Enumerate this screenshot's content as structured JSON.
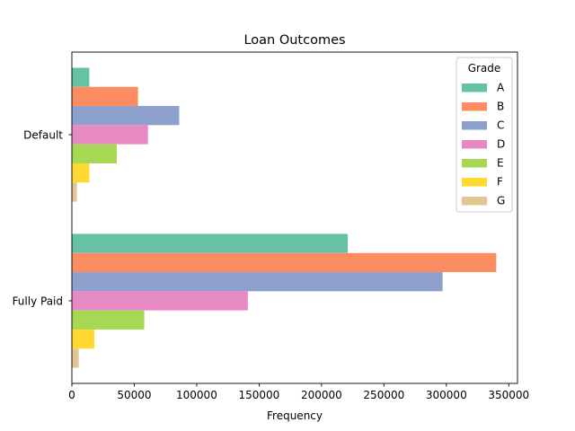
{
  "chart_data": {
    "type": "bar",
    "orientation": "horizontal",
    "title": "Loan Outcomes",
    "xlabel": "Frequency",
    "ylabel": "",
    "categories": [
      "Default",
      "Fully Paid"
    ],
    "xlim": [
      0,
      357000
    ],
    "xticks": [
      0,
      50000,
      100000,
      150000,
      200000,
      250000,
      300000,
      350000
    ],
    "xtick_labels": [
      "0",
      "50000",
      "100000",
      "150000",
      "200000",
      "250000",
      "300000",
      "350000"
    ],
    "grid": false,
    "legend": {
      "title": "Grade",
      "placement": "top-right"
    },
    "series": [
      {
        "name": "A",
        "color": "#66c2a5",
        "values": [
          14000,
          221000
        ]
      },
      {
        "name": "B",
        "color": "#fc8d62",
        "values": [
          53000,
          340000
        ]
      },
      {
        "name": "C",
        "color": "#8da0cb",
        "values": [
          86000,
          297000
        ]
      },
      {
        "name": "D",
        "color": "#e78ac3",
        "values": [
          61000,
          141000
        ]
      },
      {
        "name": "E",
        "color": "#a6d854",
        "values": [
          36000,
          58000
        ]
      },
      {
        "name": "F",
        "color": "#ffd92f",
        "values": [
          14000,
          18000
        ]
      },
      {
        "name": "G",
        "color": "#e5c494",
        "values": [
          4000,
          5500
        ]
      }
    ]
  }
}
